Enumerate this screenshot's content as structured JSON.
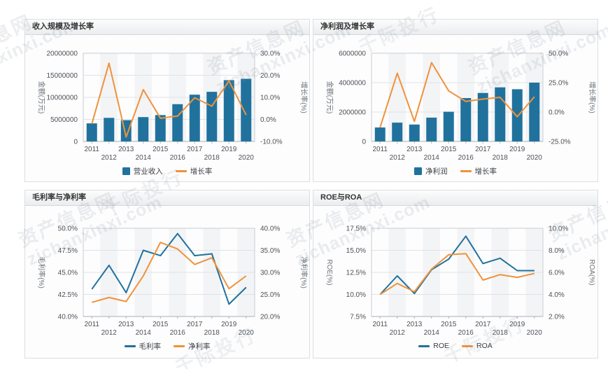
{
  "watermark": {
    "site_name": "资产信息网",
    "site_url": "zichanxinxi.com",
    "brand": "千际投行"
  },
  "chart_data": [
    {
      "id": "revenue-growth",
      "title": "收入规模及增长率",
      "type": "bar-line",
      "categories": [
        "2011",
        "2012",
        "2013",
        "2014",
        "2015",
        "2016",
        "2017",
        "2018",
        "2019",
        "2020"
      ],
      "left_axis": {
        "title": "金额(万元)",
        "min": 0,
        "max": 20000000,
        "ticks": [
          "0",
          "5000000",
          "10000000",
          "15000000",
          "20000000"
        ]
      },
      "right_axis": {
        "title": "增长率(%)",
        "min": -10,
        "max": 30,
        "ticks": [
          "-10.0%",
          "0.0%",
          "10.0%",
          "20.0%",
          "30.0%"
        ]
      },
      "series": [
        {
          "name": "营业收入",
          "type": "bar",
          "axis": "left",
          "color": "#20729d",
          "values": [
            4100000,
            5350000,
            4820000,
            5520000,
            5980000,
            8450000,
            10600000,
            11250000,
            13900000,
            14200000
          ]
        },
        {
          "name": "增长率",
          "type": "line",
          "axis": "right",
          "color": "#f0923a",
          "values": [
            -2.0,
            25.5,
            -8.0,
            13.5,
            0.5,
            1.5,
            9.8,
            6.0,
            17.5,
            2.0
          ]
        }
      ]
    },
    {
      "id": "netprofit-growth",
      "title": "净利润及增长率",
      "type": "bar-line",
      "categories": [
        "2011",
        "2012",
        "2013",
        "2014",
        "2015",
        "2016",
        "2017",
        "2018",
        "2019",
        "2020"
      ],
      "left_axis": {
        "title": "金额(万元)",
        "min": 0,
        "max": 6000000,
        "ticks": [
          "0",
          "2000000",
          "4000000",
          "6000000"
        ]
      },
      "right_axis": {
        "title": "增长率(%)",
        "min": -25,
        "max": 50,
        "ticks": [
          "-25.0%",
          "0.0%",
          "25.0%",
          "50.0%"
        ]
      },
      "series": [
        {
          "name": "净利润",
          "type": "bar",
          "axis": "left",
          "color": "#20729d",
          "values": [
            950000,
            1280000,
            1150000,
            1620000,
            2020000,
            2950000,
            3300000,
            3680000,
            3550000,
            4000000
          ]
        },
        {
          "name": "增长率",
          "type": "line",
          "axis": "right",
          "color": "#f0923a",
          "values": [
            -13,
            33,
            -8,
            42,
            18,
            9,
            11,
            12.5,
            -4,
            13
          ]
        }
      ]
    },
    {
      "id": "gross-net-margin",
      "title": "毛利率与净利率",
      "type": "line",
      "categories": [
        "2011",
        "2012",
        "2013",
        "2014",
        "2015",
        "2016",
        "2017",
        "2018",
        "2019",
        "2020"
      ],
      "left_axis": {
        "title": "毛利率(%)",
        "min": 40,
        "max": 50,
        "ticks": [
          "40.0%",
          "42.5%",
          "45.0%",
          "47.5%",
          "50.0%"
        ]
      },
      "right_axis": {
        "title": "净利率(%)",
        "min": 20,
        "max": 40,
        "ticks": [
          "20.0%",
          "25.0%",
          "30.0%",
          "35.0%",
          "40.0%"
        ]
      },
      "series": [
        {
          "name": "毛利率",
          "type": "line",
          "axis": "left",
          "color": "#20729d",
          "values": [
            43.1,
            45.8,
            42.7,
            47.5,
            46.9,
            49.4,
            46.9,
            47.1,
            41.4,
            43.3
          ]
        },
        {
          "name": "净利率",
          "type": "line",
          "axis": "right",
          "color": "#f0923a",
          "values": [
            23.2,
            24.3,
            23.4,
            29.2,
            36.8,
            35.3,
            31.8,
            33.3,
            26.3,
            29.2
          ]
        }
      ]
    },
    {
      "id": "roe-roa",
      "title": "ROE与ROA",
      "type": "line",
      "categories": [
        "2011",
        "2012",
        "2013",
        "2014",
        "2015",
        "2016",
        "2017",
        "2018",
        "2019",
        "2020"
      ],
      "left_axis": {
        "title": "ROE(%)",
        "min": 7.5,
        "max": 17.5,
        "ticks": [
          "7.5%",
          "10.0%",
          "12.5%",
          "15.0%",
          "17.5%"
        ]
      },
      "right_axis": {
        "title": "ROA(%)",
        "min": 2,
        "max": 10,
        "ticks": [
          "2.0%",
          "4.0%",
          "6.0%",
          "8.0%",
          "10.0%"
        ]
      },
      "series": [
        {
          "name": "ROE",
          "type": "line",
          "axis": "left",
          "color": "#20729d",
          "values": [
            10.0,
            12.1,
            10.1,
            12.8,
            14.0,
            16.6,
            13.5,
            14.1,
            12.7,
            12.7
          ]
        },
        {
          "name": "ROA",
          "type": "line",
          "axis": "right",
          "color": "#f0923a",
          "values": [
            4.0,
            5.0,
            4.25,
            6.3,
            7.6,
            7.7,
            5.3,
            5.8,
            5.55,
            5.9
          ]
        }
      ]
    }
  ]
}
